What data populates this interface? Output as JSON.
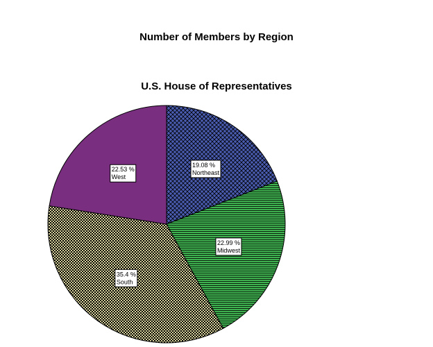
{
  "chart_data": {
    "type": "pie",
    "title": "Number of Members by Region",
    "subtitle": "U.S. House of Representatives",
    "categories": [
      "Northeast",
      "Midwest",
      "South",
      "West"
    ],
    "values": [
      19.08,
      22.99,
      35.4,
      22.53
    ],
    "value_labels": [
      "19.08 %",
      "22.99 %",
      "35.4 %",
      "22.53 %"
    ],
    "colors": [
      "#4a5cb0",
      "#3fb34f",
      "#d9d49c",
      "#7a2e80"
    ],
    "patterns": [
      "crosshatch",
      "horizontal",
      "checker",
      "none"
    ]
  }
}
